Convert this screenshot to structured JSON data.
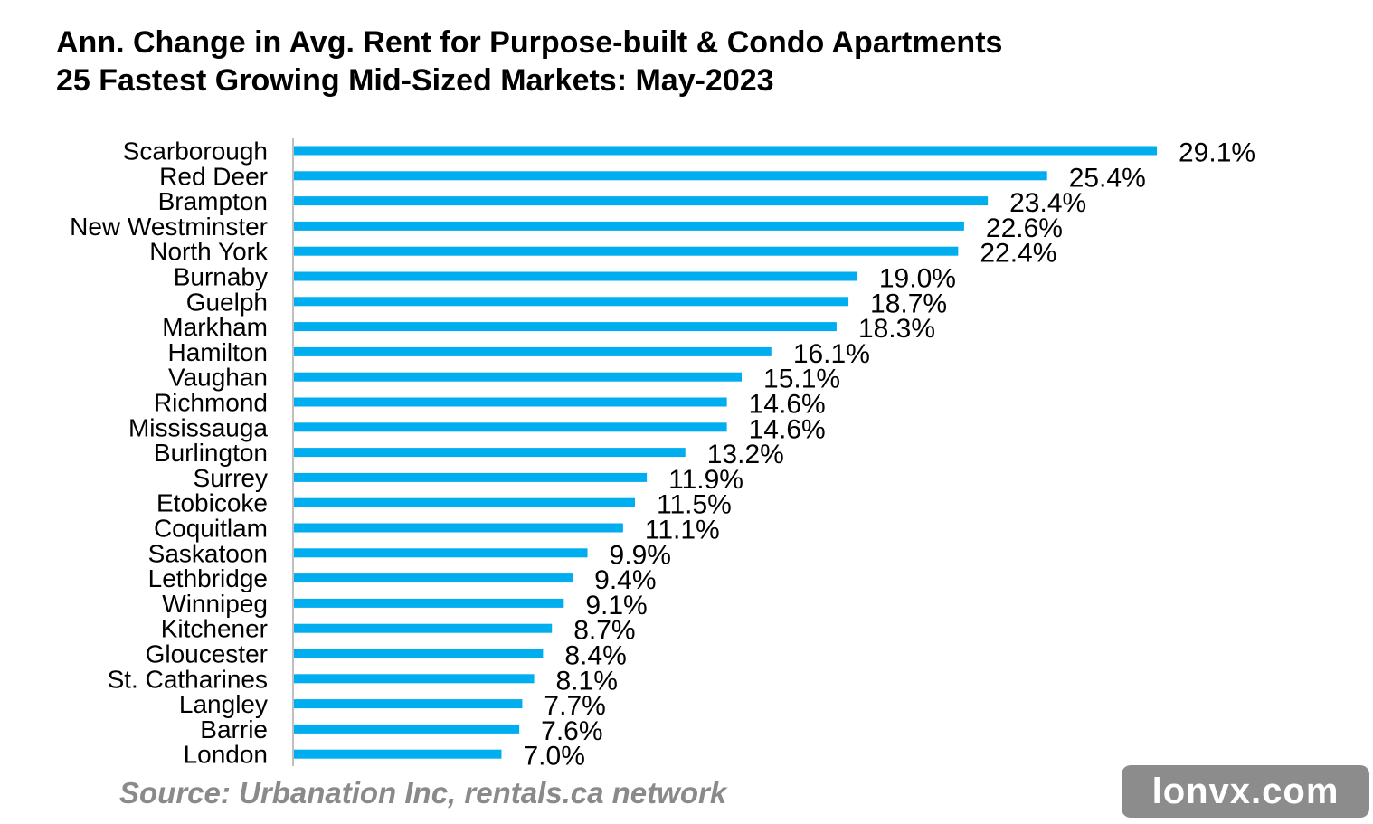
{
  "title_line1": "Ann. Change in Avg. Rent for Purpose-built & Condo Apartments",
  "title_line2": "25 Fastest Growing Mid-Sized Markets: May-2023",
  "source": "Source: Urbanation Inc, rentals.ca network",
  "watermark": "lonvx.com",
  "colors": {
    "bar": "#00aeef",
    "axis": "#bfbfbf",
    "source": "#8a8a8a",
    "badge": "#8c8c8c"
  },
  "chart_data": {
    "type": "bar",
    "orientation": "horizontal",
    "title": "Ann. Change in Avg. Rent for Purpose-built & Condo Apartments 25 Fastest Growing Mid-Sized Markets: May-2023",
    "categories": [
      "Scarborough",
      "Red Deer",
      "Brampton",
      "New Westminster",
      "North York",
      "Burnaby",
      "Guelph",
      "Markham",
      "Hamilton",
      "Vaughan",
      "Richmond",
      "Mississauga",
      "Burlington",
      "Surrey",
      "Etobicoke",
      "Coquitlam",
      "Saskatoon",
      "Lethbridge",
      "Winnipeg",
      "Kitchener",
      "Gloucester",
      "St. Catharines",
      "Langley",
      "Barrie",
      "London"
    ],
    "values": [
      29.1,
      25.4,
      23.4,
      22.6,
      22.4,
      19.0,
      18.7,
      18.3,
      16.1,
      15.1,
      14.6,
      14.6,
      13.2,
      11.9,
      11.5,
      11.1,
      9.9,
      9.4,
      9.1,
      8.7,
      8.4,
      8.1,
      7.7,
      7.6,
      7.0
    ],
    "labels": [
      "29.1%",
      "25.4%",
      "23.4%",
      "22.6%",
      "22.4%",
      "19.0%",
      "18.7%",
      "18.3%",
      "16.1%",
      "15.1%",
      "14.6%",
      "14.6%",
      "13.2%",
      "11.9%",
      "11.5%",
      "11.1%",
      "9.9%",
      "9.4%",
      "9.1%",
      "8.7%",
      "8.4%",
      "8.1%",
      "7.7%",
      "7.6%",
      "7.0%"
    ],
    "xlim": [
      0,
      29.1
    ],
    "grid": false,
    "legend": "none"
  }
}
